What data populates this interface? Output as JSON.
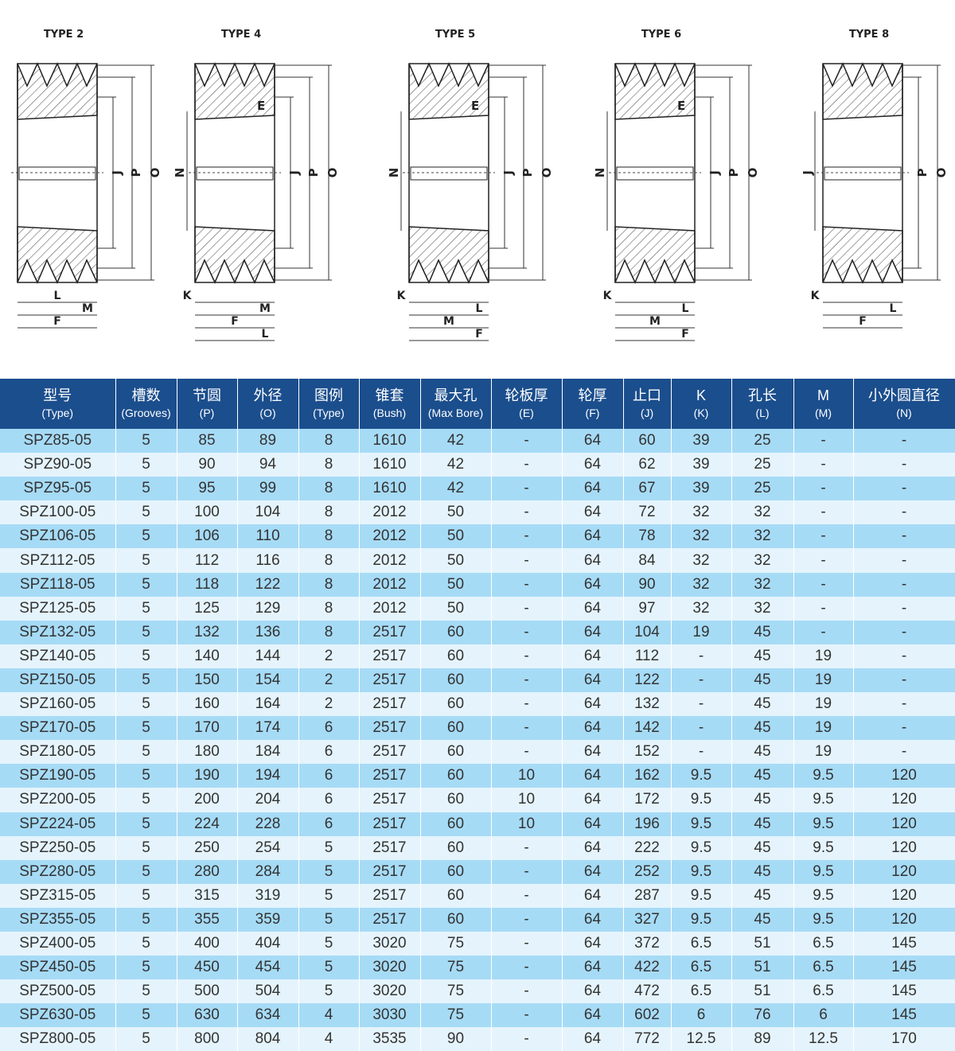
{
  "drawings": [
    {
      "label": "TYPE 2",
      "center": 80,
      "right": [
        "J",
        "P",
        "O"
      ],
      "left": [],
      "bottom": [
        "L",
        "M",
        "F"
      ]
    },
    {
      "label": "TYPE 4",
      "center": 303,
      "right": [
        "J",
        "P",
        "O"
      ],
      "left": [
        "N"
      ],
      "bottom": [
        "K",
        "M",
        "F",
        "L"
      ],
      "web": "E"
    },
    {
      "label": "TYPE 5",
      "center": 572,
      "right": [
        "J",
        "P",
        "O"
      ],
      "left": [
        "N"
      ],
      "bottom": [
        "K",
        "L",
        "M",
        "F"
      ],
      "web": "E"
    },
    {
      "label": "TYPE 6",
      "center": 831,
      "right": [
        "J",
        "P",
        "O"
      ],
      "left": [
        "N"
      ],
      "bottom": [
        "K",
        "L",
        "M",
        "F"
      ],
      "web": "E"
    },
    {
      "label": "TYPE 8",
      "center": 1092,
      "right": [
        "P",
        "O"
      ],
      "left": [
        "J"
      ],
      "bottom": [
        "K",
        "L",
        "F"
      ]
    }
  ],
  "colors": {
    "header": "#1b4e8d",
    "row_dark": "#a6dbf6",
    "row_light": "#e5f4fc"
  },
  "table": {
    "headers": [
      {
        "cn": "型号",
        "en": "(Type)"
      },
      {
        "cn": "槽数",
        "en": "(Grooves)"
      },
      {
        "cn": "节圆",
        "en": "(P)"
      },
      {
        "cn": "外径",
        "en": "(O)"
      },
      {
        "cn": "图例",
        "en": "(Type)"
      },
      {
        "cn": "锥套",
        "en": "(Bush)"
      },
      {
        "cn": "最大孔",
        "en": "(Max Bore)"
      },
      {
        "cn": "轮板厚",
        "en": "(E)"
      },
      {
        "cn": "轮厚",
        "en": "(F)"
      },
      {
        "cn": "止口",
        "en": "(J)"
      },
      {
        "cn": "K",
        "en": "(K)"
      },
      {
        "cn": "孔长",
        "en": "(L)"
      },
      {
        "cn": "M",
        "en": "(M)"
      },
      {
        "cn": "小外圆直径",
        "en": "(N)"
      }
    ],
    "rows": [
      [
        "SPZ85-05",
        "5",
        "85",
        "89",
        "8",
        "1610",
        "42",
        "-",
        "64",
        "60",
        "39",
        "25",
        "-",
        "-"
      ],
      [
        "SPZ90-05",
        "5",
        "90",
        "94",
        "8",
        "1610",
        "42",
        "-",
        "64",
        "62",
        "39",
        "25",
        "-",
        "-"
      ],
      [
        "SPZ95-05",
        "5",
        "95",
        "99",
        "8",
        "1610",
        "42",
        "-",
        "64",
        "67",
        "39",
        "25",
        "-",
        "-"
      ],
      [
        "SPZ100-05",
        "5",
        "100",
        "104",
        "8",
        "2012",
        "50",
        "-",
        "64",
        "72",
        "32",
        "32",
        "-",
        "-"
      ],
      [
        "SPZ106-05",
        "5",
        "106",
        "110",
        "8",
        "2012",
        "50",
        "-",
        "64",
        "78",
        "32",
        "32",
        "-",
        "-"
      ],
      [
        "SPZ112-05",
        "5",
        "112",
        "116",
        "8",
        "2012",
        "50",
        "-",
        "64",
        "84",
        "32",
        "32",
        "-",
        "-"
      ],
      [
        "SPZ118-05",
        "5",
        "118",
        "122",
        "8",
        "2012",
        "50",
        "-",
        "64",
        "90",
        "32",
        "32",
        "-",
        "-"
      ],
      [
        "SPZ125-05",
        "5",
        "125",
        "129",
        "8",
        "2012",
        "50",
        "-",
        "64",
        "97",
        "32",
        "32",
        "-",
        "-"
      ],
      [
        "SPZ132-05",
        "5",
        "132",
        "136",
        "8",
        "2517",
        "60",
        "-",
        "64",
        "104",
        "19",
        "45",
        "-",
        "-"
      ],
      [
        "SPZ140-05",
        "5",
        "140",
        "144",
        "2",
        "2517",
        "60",
        "-",
        "64",
        "112",
        "-",
        "45",
        "19",
        "-"
      ],
      [
        "SPZ150-05",
        "5",
        "150",
        "154",
        "2",
        "2517",
        "60",
        "-",
        "64",
        "122",
        "-",
        "45",
        "19",
        "-"
      ],
      [
        "SPZ160-05",
        "5",
        "160",
        "164",
        "2",
        "2517",
        "60",
        "-",
        "64",
        "132",
        "-",
        "45",
        "19",
        "-"
      ],
      [
        "SPZ170-05",
        "5",
        "170",
        "174",
        "6",
        "2517",
        "60",
        "-",
        "64",
        "142",
        "-",
        "45",
        "19",
        "-"
      ],
      [
        "SPZ180-05",
        "5",
        "180",
        "184",
        "6",
        "2517",
        "60",
        "-",
        "64",
        "152",
        "-",
        "45",
        "19",
        "-"
      ],
      [
        "SPZ190-05",
        "5",
        "190",
        "194",
        "6",
        "2517",
        "60",
        "10",
        "64",
        "162",
        "9.5",
        "45",
        "9.5",
        "120"
      ],
      [
        "SPZ200-05",
        "5",
        "200",
        "204",
        "6",
        "2517",
        "60",
        "10",
        "64",
        "172",
        "9.5",
        "45",
        "9.5",
        "120"
      ],
      [
        "SPZ224-05",
        "5",
        "224",
        "228",
        "6",
        "2517",
        "60",
        "10",
        "64",
        "196",
        "9.5",
        "45",
        "9.5",
        "120"
      ],
      [
        "SPZ250-05",
        "5",
        "250",
        "254",
        "5",
        "2517",
        "60",
        "-",
        "64",
        "222",
        "9.5",
        "45",
        "9.5",
        "120"
      ],
      [
        "SPZ280-05",
        "5",
        "280",
        "284",
        "5",
        "2517",
        "60",
        "-",
        "64",
        "252",
        "9.5",
        "45",
        "9.5",
        "120"
      ],
      [
        "SPZ315-05",
        "5",
        "315",
        "319",
        "5",
        "2517",
        "60",
        "-",
        "64",
        "287",
        "9.5",
        "45",
        "9.5",
        "120"
      ],
      [
        "SPZ355-05",
        "5",
        "355",
        "359",
        "5",
        "2517",
        "60",
        "-",
        "64",
        "327",
        "9.5",
        "45",
        "9.5",
        "120"
      ],
      [
        "SPZ400-05",
        "5",
        "400",
        "404",
        "5",
        "3020",
        "75",
        "-",
        "64",
        "372",
        "6.5",
        "51",
        "6.5",
        "145"
      ],
      [
        "SPZ450-05",
        "5",
        "450",
        "454",
        "5",
        "3020",
        "75",
        "-",
        "64",
        "422",
        "6.5",
        "51",
        "6.5",
        "145"
      ],
      [
        "SPZ500-05",
        "5",
        "500",
        "504",
        "5",
        "3020",
        "75",
        "-",
        "64",
        "472",
        "6.5",
        "51",
        "6.5",
        "145"
      ],
      [
        "SPZ630-05",
        "5",
        "630",
        "634",
        "4",
        "3030",
        "75",
        "-",
        "64",
        "602",
        "6",
        "76",
        "6",
        "145"
      ],
      [
        "SPZ800-05",
        "5",
        "800",
        "804",
        "4",
        "3535",
        "90",
        "-",
        "64",
        "772",
        "12.5",
        "89",
        "12.5",
        "170"
      ]
    ]
  }
}
